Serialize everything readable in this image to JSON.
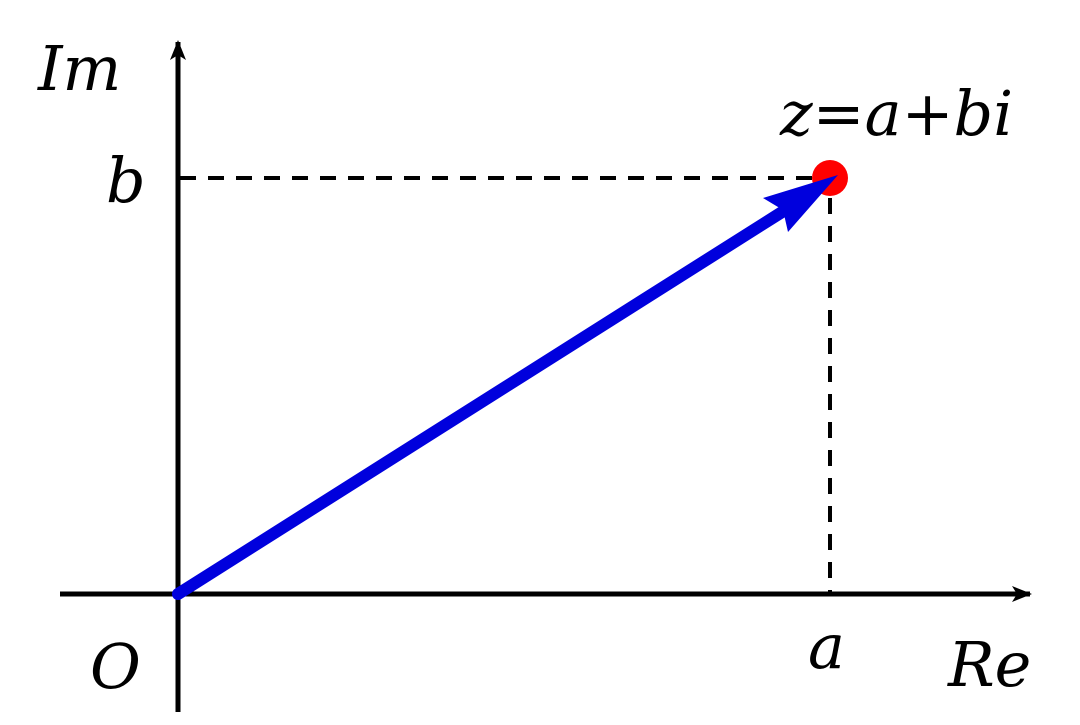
{
  "labels": {
    "im_axis": "Im",
    "re_axis": "Re",
    "origin": "O",
    "a": "a",
    "b": "b",
    "point": "z=a+bi"
  },
  "colors": {
    "vector": "#0000dd",
    "point": "#ff0000",
    "axes": "#000000"
  }
}
